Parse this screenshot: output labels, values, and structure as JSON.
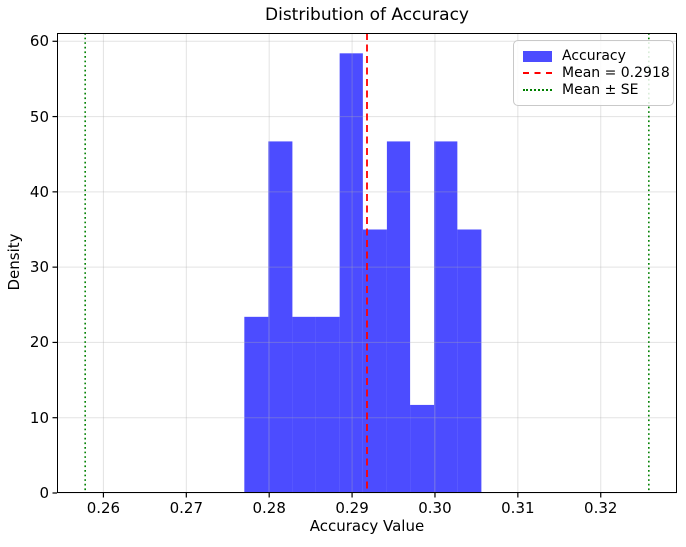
{
  "chart_data": {
    "type": "bar",
    "subtype": "histogram-density",
    "title": "Distribution of Accuracy",
    "xlabel": "Accuracy Value",
    "ylabel": "Density",
    "xlim": [
      0.2544,
      0.3292
    ],
    "ylim": [
      0,
      61.1
    ],
    "grid": true,
    "x_tick_values": [
      0.26,
      0.27,
      0.28,
      0.29,
      0.3,
      0.31,
      0.32
    ],
    "x_tick_labels": [
      "0.26",
      "0.27",
      "0.28",
      "0.29",
      "0.30",
      "0.31",
      "0.32"
    ],
    "y_tick_values": [
      0,
      10,
      20,
      30,
      40,
      50,
      60
    ],
    "y_tick_labels": [
      "0",
      "10",
      "20",
      "30",
      "40",
      "50",
      "60"
    ],
    "histogram": {
      "label": "Accuracy",
      "color": "#0000ff",
      "opacity": 0.7,
      "bin_edges": [
        0.277,
        0.2799,
        0.2828,
        0.2856,
        0.2885,
        0.2913,
        0.2942,
        0.297,
        0.2999,
        0.3027,
        0.3056
      ],
      "densities": [
        23.4,
        46.7,
        23.4,
        23.4,
        58.4,
        35.0,
        46.7,
        11.7,
        46.7,
        35.0
      ],
      "counts": [
        2,
        4,
        2,
        2,
        5,
        3,
        4,
        1,
        4,
        3
      ]
    },
    "mean_line": {
      "x": 0.2918,
      "color": "#ff0000",
      "style": "dashed",
      "label": "Mean = 0.2918"
    },
    "se_lines": {
      "values": [
        0.2578,
        0.3258
      ],
      "color": "#008000",
      "style": "dotted",
      "label": "Mean ± SE"
    },
    "legend": {
      "position": "upper-right",
      "entries": [
        {
          "type": "patch",
          "label": "Accuracy",
          "color": "#0000ff",
          "opacity": 0.7
        },
        {
          "type": "dashed-line",
          "label": "Mean = 0.2918",
          "color": "#ff0000"
        },
        {
          "type": "dotted-line",
          "label": "Mean ± SE",
          "color": "#008000"
        }
      ]
    }
  }
}
